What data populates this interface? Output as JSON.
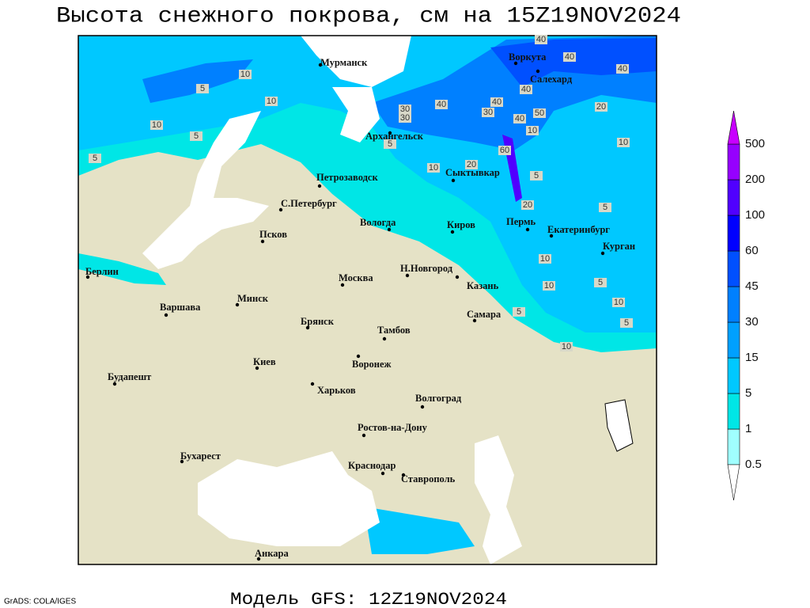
{
  "title": "Высота снежного покрова, см на 15Z19NOV2024",
  "footer_model": "Модель GFS: 12Z19NOV2024",
  "footer_credit": "GrADS: COLA/IGES",
  "cities": [
    "Мурманск",
    "Воркута",
    "Салехард",
    "Архангельск",
    "Сыктывкар",
    "Петрозаводск",
    "С.Петербург",
    "Вологда",
    "Киров",
    "Пермь",
    "Екатеринбург",
    "Курган",
    "Псков",
    "Берлин",
    "Н.Новгород",
    "Москва",
    "Казань",
    "Минск",
    "Варшава",
    "Самара",
    "Брянск",
    "Тамбов",
    "Киев",
    "Воронеж",
    "Будапешт",
    "Харьков",
    "Волгоград",
    "Ростов-на-Дону",
    "Бухарест",
    "Краснодар",
    "Ставрополь",
    "Анкара"
  ],
  "contour_labels": [
    40,
    40,
    40,
    10,
    5,
    10,
    30,
    30,
    40,
    40,
    30,
    40,
    40,
    50,
    10,
    20,
    10,
    5,
    5,
    5,
    60,
    10,
    20,
    5,
    10,
    20,
    5,
    10,
    10,
    5,
    10,
    5,
    5,
    10
  ],
  "colorbar": {
    "levels": [
      0.5,
      1,
      5,
      15,
      30,
      45,
      60,
      100,
      200,
      500
    ],
    "colors": [
      "#ffffff",
      "#a0ffff",
      "#00e6e6",
      "#00c8ff",
      "#00a0ff",
      "#0080ff",
      "#0050ff",
      "#0000ff",
      "#5000ff",
      "#9600ff",
      "#c800ff"
    ]
  }
}
